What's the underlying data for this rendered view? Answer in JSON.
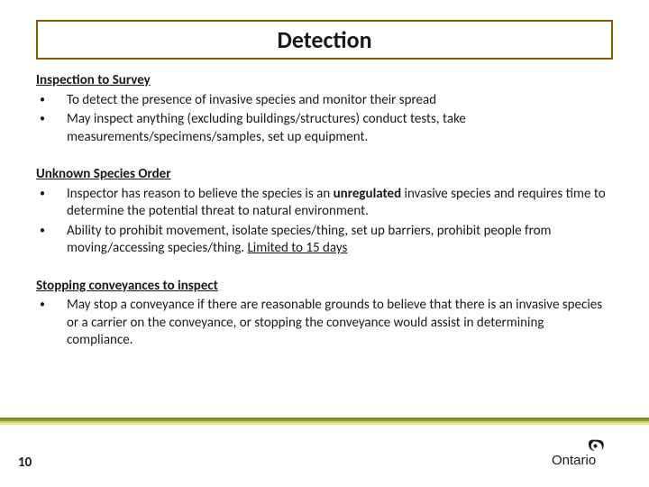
{
  "title": "Detection",
  "sections": [
    {
      "heading": "Inspection to Survey",
      "bullets": [
        {
          "parts": [
            {
              "t": "To detect the presence of invasive species and monitor their spread"
            }
          ]
        },
        {
          "parts": [
            {
              "t": "May inspect anything (excluding buildings/structures) conduct tests, take measurements/specimens/samples, set up equipment."
            }
          ]
        }
      ]
    },
    {
      "heading": "Unknown Species Order",
      "bullets": [
        {
          "parts": [
            {
              "t": "Inspector has reason to believe the species is an "
            },
            {
              "t": "unregulated ",
              "bold": true
            },
            {
              "t": " invasive species and requires time to determine the  potential  threat to natural environment."
            }
          ]
        },
        {
          "parts": [
            {
              "t": "Ability to prohibit movement, isolate species/thing, set up barriers, prohibit people from moving/accessing species/thing.  "
            },
            {
              "t": "Limited to 15 days",
              "underline": true
            }
          ]
        }
      ]
    },
    {
      "heading": "Stopping conveyances to inspect",
      "bullets": [
        {
          "parts": [
            {
              "t": "May stop a conveyance if there are reasonable grounds to believe that there is an invasive species or a carrier on the conveyance, or stopping the conveyance would assist in determining compliance."
            }
          ]
        }
      ]
    }
  ],
  "page_number": "10",
  "logo_text": "Ontario",
  "divider_colors": [
    "#6b8e23",
    "#8f9e3a",
    "#d9cf5a",
    "#efe69a"
  ],
  "title_border_color": "#885a00",
  "text_color": "#1a1a1a",
  "background_color": "#ffffff"
}
